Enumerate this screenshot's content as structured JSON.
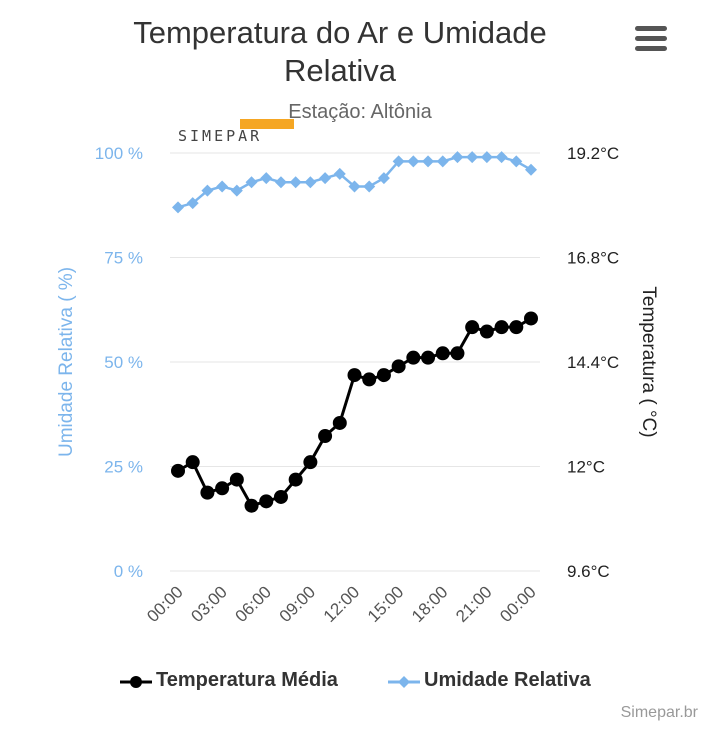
{
  "header": {
    "title_line1": "Temperatura do Ar e Umidade",
    "title_line2": "Relativa",
    "subtitle": "Estação: Altônia",
    "logo_text": "SIMEPAR",
    "menu_icon": "hamburger-menu-icon"
  },
  "credit": "Simepar.br",
  "colors": {
    "humidity": "#7cb5ec",
    "temperature": "#000000",
    "humidity_axis_text": "#7cb5ec",
    "temperature_axis_text": "#222222",
    "grid": "#e6e6e6",
    "logo_accent": "#f5a623"
  },
  "chart_data": {
    "type": "line",
    "title": "Temperatura do Ar e Umidade Relativa",
    "subtitle": "Estação: Altônia",
    "x_ticks": [
      "00:00",
      "03:00",
      "06:00",
      "09:00",
      "12:00",
      "15:00",
      "18:00",
      "21:00",
      "00:00"
    ],
    "left_axis": {
      "label": "Umidade Relativa ( %)",
      "ticks": [
        "100 %",
        "75 %",
        "50 %",
        "25 %",
        "0 %"
      ],
      "range": [
        0,
        100
      ]
    },
    "right_axis": {
      "label": "Temperatura ( °C)",
      "ticks": [
        "19.2°C",
        "16.8°C",
        "14.4°C",
        "12°C",
        "9.6°C"
      ],
      "range": [
        9.6,
        19.2
      ]
    },
    "series": [
      {
        "name": "Temperatura Média",
        "axis": "right",
        "marker": "circle",
        "values": [
          11.9,
          12.1,
          11.4,
          11.5,
          11.7,
          11.1,
          11.2,
          11.3,
          11.7,
          12.1,
          12.7,
          13.0,
          14.1,
          14.0,
          14.1,
          14.3,
          14.5,
          14.5,
          14.6,
          14.6,
          15.2,
          15.1,
          15.2,
          15.2,
          15.4
        ]
      },
      {
        "name": "Umidade Relativa",
        "axis": "left",
        "marker": "diamond",
        "values": [
          87,
          88,
          91,
          92,
          91,
          93,
          94,
          93,
          93,
          93,
          94,
          95,
          92,
          92,
          94,
          98,
          98,
          98,
          98,
          99,
          99,
          99,
          99,
          98,
          96
        ]
      }
    ]
  }
}
